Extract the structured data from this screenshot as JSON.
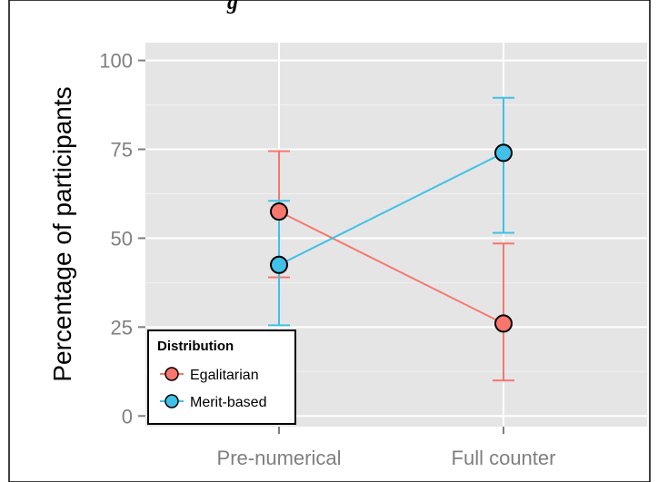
{
  "title_fragment": "g",
  "chart_data": {
    "type": "line",
    "categories": [
      "Pre-numerical",
      "Full counter"
    ],
    "ylabel": "Percentage of participants",
    "xlabel": "",
    "ylim": [
      -3,
      105
    ],
    "yticks": [
      0,
      25,
      50,
      75,
      100
    ],
    "grid": true,
    "legend": {
      "title": "Distribution",
      "placement": "bottom-left"
    },
    "series": [
      {
        "name": "Egalitarian",
        "color": "#f8766d",
        "values": [
          57.5,
          26
        ],
        "error_low": [
          39,
          10
        ],
        "error_high": [
          74.5,
          48.5
        ]
      },
      {
        "name": "Merit-based",
        "color": "#3fc1e8",
        "values": [
          42.5,
          74
        ],
        "error_low": [
          25.5,
          51.5
        ],
        "error_high": [
          60.5,
          89.5
        ]
      }
    ]
  }
}
